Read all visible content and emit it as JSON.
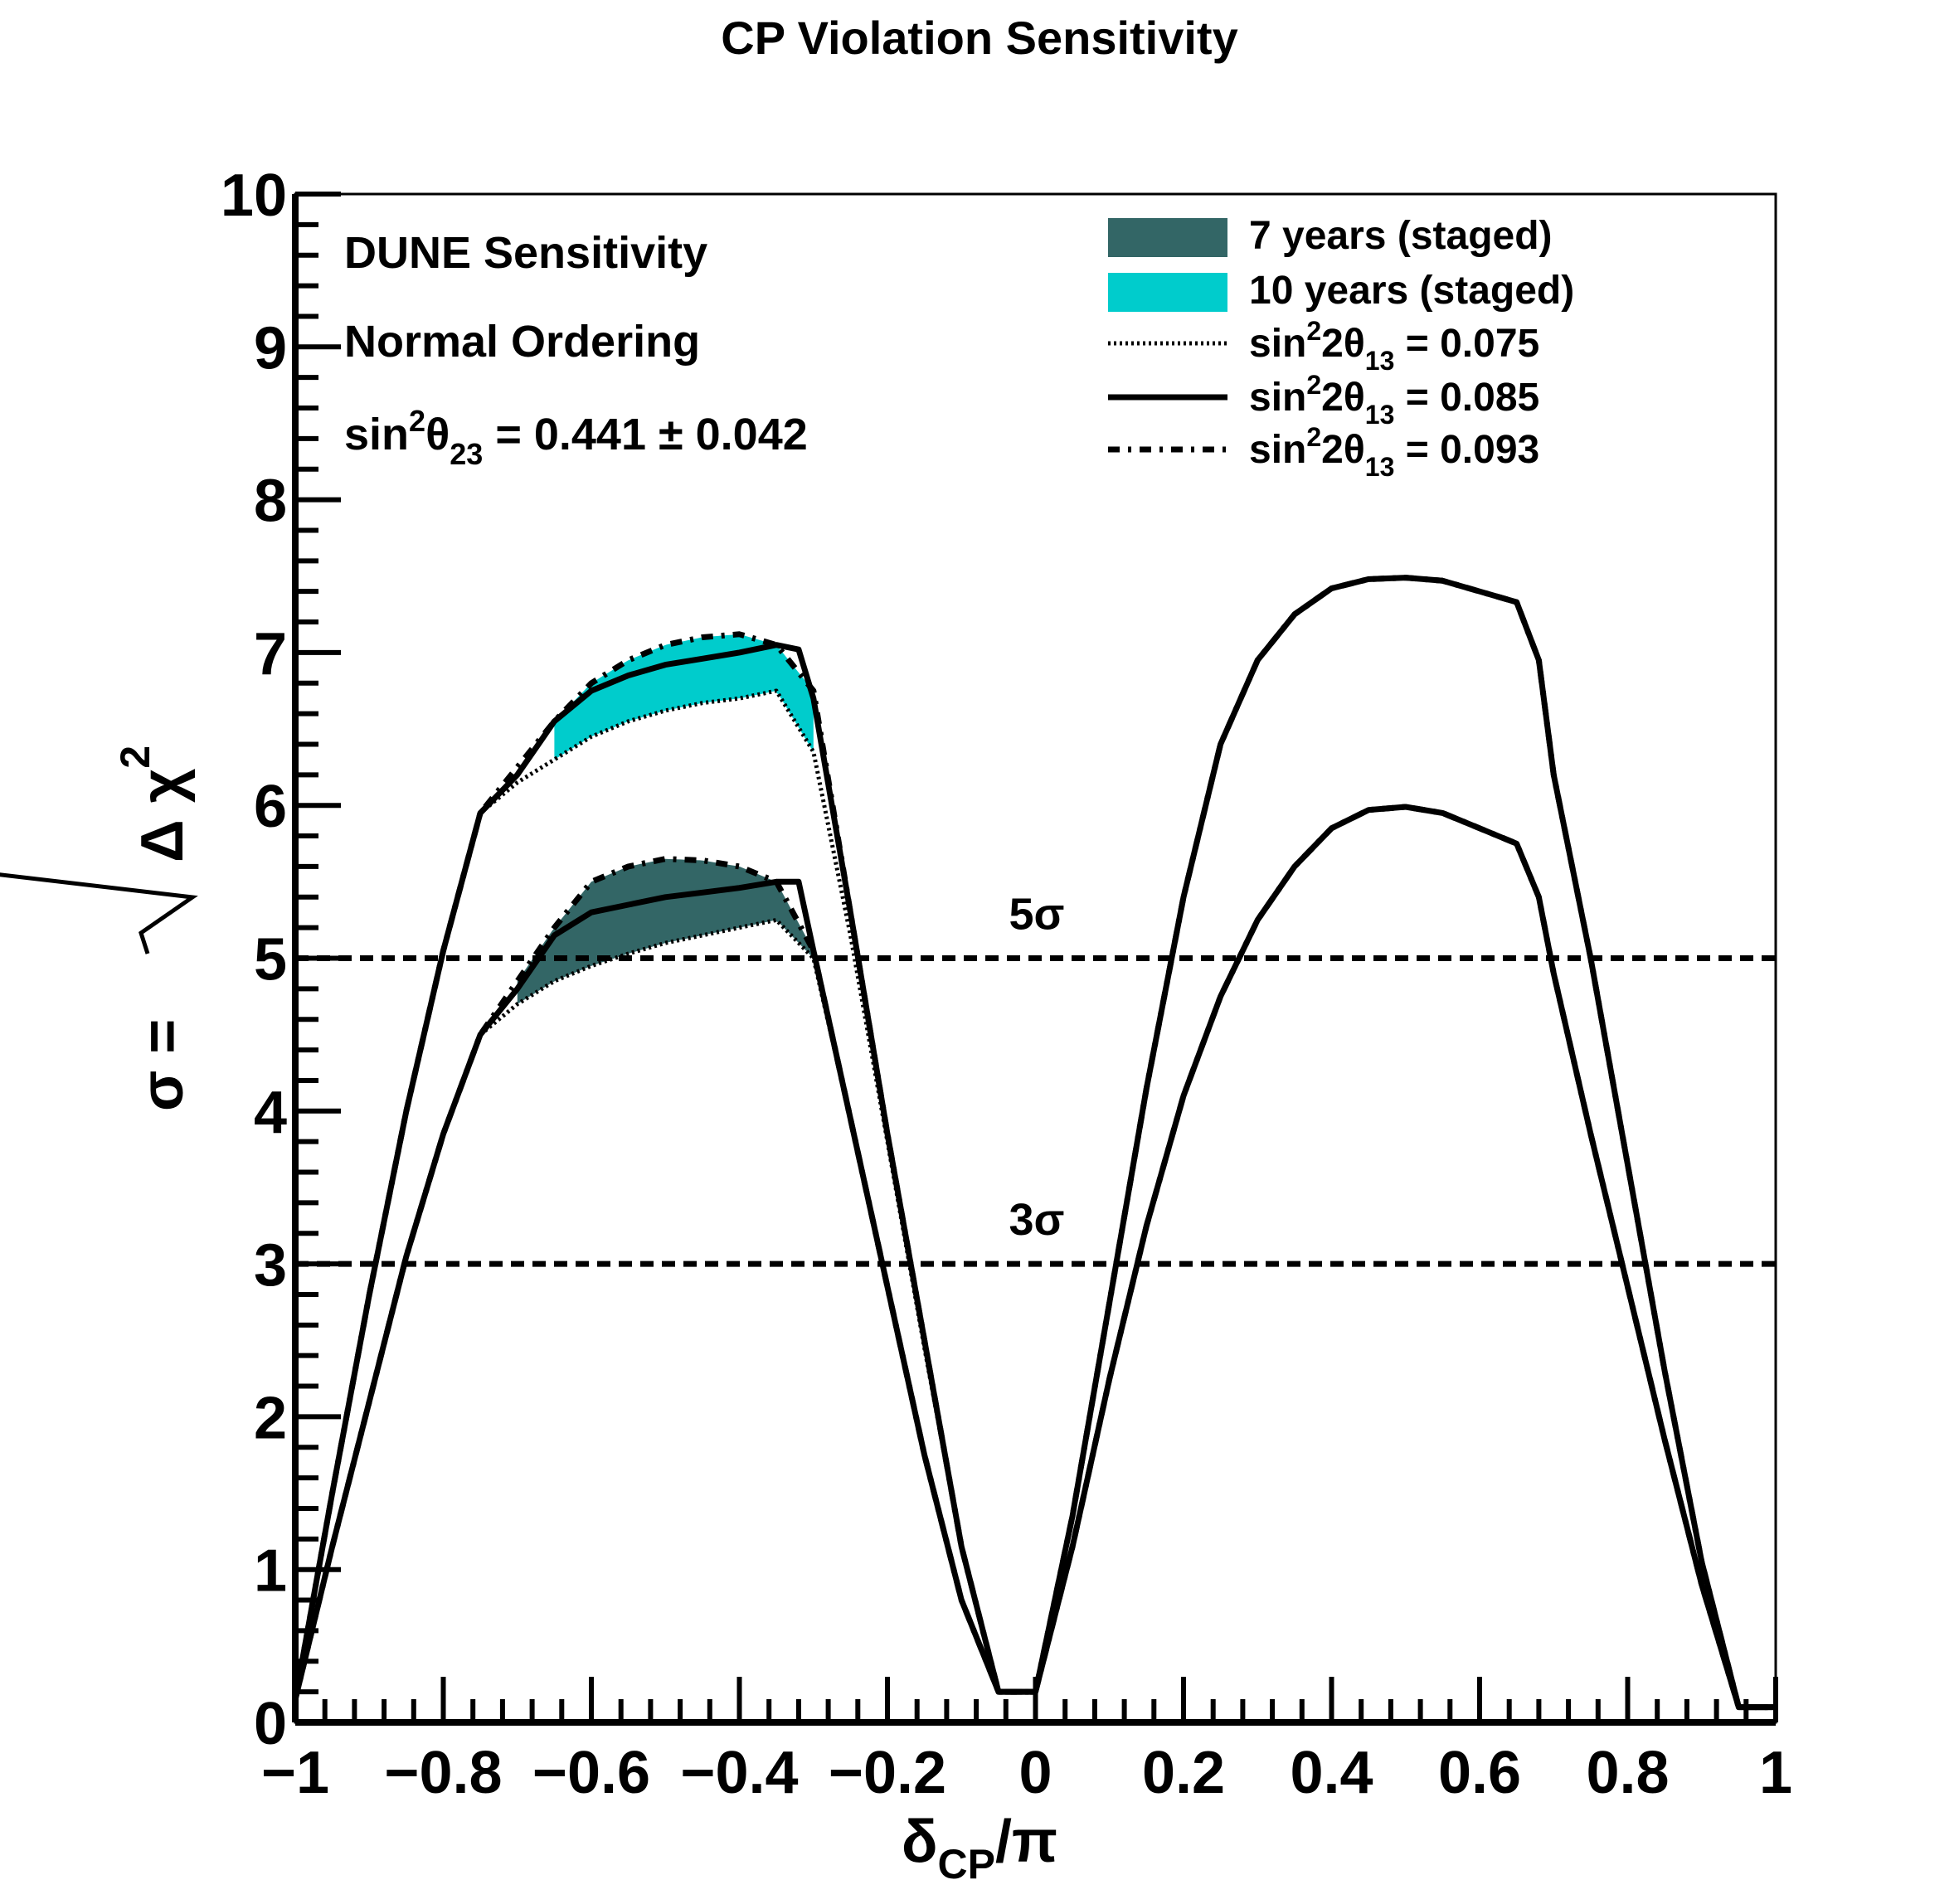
{
  "chart_data": {
    "type": "line",
    "title": "CP Violation Sensitivity",
    "xlabel": {
      "main": "δ",
      "sub": "CP",
      "tail": "/π"
    },
    "ylabel": {
      "prefix": "σ = ",
      "radicand": "Δ χ",
      "sup": "2"
    },
    "xlim": [
      -1,
      1
    ],
    "ylim": [
      0,
      10
    ],
    "xticks": [
      -1,
      -0.8,
      -0.6,
      -0.4,
      -0.2,
      0,
      0.2,
      0.4,
      0.6,
      0.8,
      1
    ],
    "xtick_labels": [
      "−1",
      "−0.8",
      "−0.6",
      "−0.4",
      "−0.2",
      "0",
      "0.2",
      "0.4",
      "0.6",
      "0.8",
      "1"
    ],
    "yticks": [
      0,
      1,
      2,
      3,
      4,
      5,
      6,
      7,
      8,
      9,
      10
    ],
    "ytick_labels": [
      "0",
      "1",
      "2",
      "3",
      "4",
      "5",
      "6",
      "7",
      "8",
      "9",
      "10"
    ],
    "annotations": {
      "line1": "DUNE Sensitivity",
      "line2": "Normal Ordering",
      "line3": {
        "pre": "sin",
        "sup": "2",
        "mid": "θ",
        "sub": "23",
        "post": " = 0.441 ± 0.042"
      }
    },
    "reference_lines": [
      {
        "y": 5,
        "label": "5σ"
      },
      {
        "y": 3,
        "label": "3σ"
      }
    ],
    "legend": {
      "position": "top-right",
      "entries": [
        {
          "kind": "fill",
          "label": "7 years (staged)",
          "color": "#336666"
        },
        {
          "kind": "fill",
          "label": "10 years (staged)",
          "color": "#00cccc"
        },
        {
          "kind": "dotted",
          "pre": "sin",
          "sup": "2",
          "mid": "2θ",
          "sub": "13",
          "post": " = 0.075"
        },
        {
          "kind": "solid",
          "pre": "sin",
          "sup": "2",
          "mid": "2θ",
          "sub": "13",
          "post": " = 0.085"
        },
        {
          "kind": "dashdot",
          "pre": "sin",
          "sup": "2",
          "mid": "2θ",
          "sub": "13",
          "post": " = 0.093"
        }
      ]
    },
    "series": [
      {
        "group": "7 years (staged)",
        "style": "dotted",
        "color": "#000000",
        "x": [
          -1,
          -0.95,
          -0.9,
          -0.85,
          -0.8,
          -0.75,
          -0.7,
          -0.65,
          -0.6,
          -0.55,
          -0.5,
          -0.45,
          -0.4,
          -0.35,
          -0.3,
          -0.25,
          -0.2,
          -0.15,
          -0.1,
          -0.05,
          0,
          0.05,
          0.1,
          0.15,
          0.2,
          0.25,
          0.3,
          0.35,
          0.4,
          0.45,
          0.5,
          0.55,
          0.6,
          0.65,
          0.68,
          0.7,
          0.75,
          0.8,
          0.85,
          0.9,
          0.95,
          1
        ],
        "y": [
          0.15,
          1.15,
          2.1,
          3.05,
          3.85,
          4.5,
          4.7,
          4.85,
          4.95,
          5.03,
          5.1,
          5.15,
          5.2,
          5.25,
          5.0,
          3.95,
          2.85,
          1.75,
          0.8,
          0.2,
          0.2,
          1.15,
          2.25,
          3.25,
          4.1,
          4.75,
          5.25,
          5.6,
          5.85,
          5.97,
          5.99,
          5.95,
          5.85,
          5.75,
          5.4,
          4.9,
          3.85,
          2.85,
          1.85,
          0.9,
          0.1,
          0.1
        ]
      },
      {
        "group": "7 years (staged)",
        "style": "solid",
        "color": "#000000",
        "x": [
          -1,
          -0.95,
          -0.9,
          -0.85,
          -0.8,
          -0.75,
          -0.7,
          -0.65,
          -0.6,
          -0.55,
          -0.5,
          -0.45,
          -0.4,
          -0.35,
          -0.32,
          -0.3,
          -0.25,
          -0.2,
          -0.15,
          -0.1,
          -0.05,
          0,
          0.05,
          0.1,
          0.15,
          0.2,
          0.25,
          0.3,
          0.35,
          0.4,
          0.45,
          0.5,
          0.55,
          0.6,
          0.65,
          0.68,
          0.7,
          0.75,
          0.8,
          0.85,
          0.9,
          0.95,
          1
        ],
        "y": [
          0.15,
          1.15,
          2.1,
          3.05,
          3.85,
          4.5,
          4.8,
          5.15,
          5.3,
          5.35,
          5.4,
          5.43,
          5.46,
          5.5,
          5.5,
          5.05,
          3.95,
          2.85,
          1.75,
          0.8,
          0.2,
          0.2,
          1.15,
          2.25,
          3.25,
          4.1,
          4.75,
          5.25,
          5.6,
          5.85,
          5.97,
          5.99,
          5.95,
          5.85,
          5.75,
          5.4,
          4.9,
          3.85,
          2.85,
          1.85,
          0.9,
          0.1,
          0.1
        ]
      },
      {
        "group": "7 years (staged)",
        "style": "dashdot",
        "color": "#000000",
        "x": [
          -1,
          -0.95,
          -0.9,
          -0.85,
          -0.8,
          -0.75,
          -0.7,
          -0.65,
          -0.6,
          -0.55,
          -0.5,
          -0.45,
          -0.4,
          -0.35,
          -0.3,
          -0.25,
          -0.2,
          -0.15,
          -0.1,
          -0.05,
          0,
          0.05,
          0.1,
          0.15,
          0.2,
          0.25,
          0.3,
          0.35,
          0.4,
          0.45,
          0.5,
          0.55,
          0.6,
          0.65,
          0.68,
          0.7,
          0.75,
          0.8,
          0.85,
          0.9,
          0.95,
          1
        ],
        "y": [
          0.15,
          1.15,
          2.1,
          3.05,
          3.85,
          4.5,
          4.85,
          5.2,
          5.5,
          5.6,
          5.65,
          5.64,
          5.6,
          5.5,
          5.05,
          3.95,
          2.85,
          1.75,
          0.8,
          0.2,
          0.2,
          1.15,
          2.25,
          3.25,
          4.1,
          4.75,
          5.25,
          5.6,
          5.85,
          5.97,
          5.99,
          5.95,
          5.85,
          5.75,
          5.4,
          4.9,
          3.85,
          2.85,
          1.85,
          0.9,
          0.1,
          0.1
        ]
      },
      {
        "group": "10 years (staged)",
        "style": "dotted",
        "color": "#000000",
        "x": [
          -1,
          -0.95,
          -0.9,
          -0.85,
          -0.8,
          -0.75,
          -0.7,
          -0.65,
          -0.6,
          -0.55,
          -0.5,
          -0.45,
          -0.4,
          -0.35,
          -0.3,
          -0.25,
          -0.2,
          -0.15,
          -0.1,
          -0.05,
          0,
          0.05,
          0.1,
          0.15,
          0.2,
          0.25,
          0.3,
          0.35,
          0.4,
          0.45,
          0.5,
          0.55,
          0.6,
          0.65,
          0.68,
          0.7,
          0.75,
          0.8,
          0.85,
          0.9,
          0.95,
          1
        ],
        "y": [
          0.15,
          1.5,
          2.8,
          4.0,
          5.05,
          5.95,
          6.15,
          6.3,
          6.45,
          6.55,
          6.62,
          6.67,
          6.7,
          6.75,
          6.35,
          5.15,
          3.8,
          2.45,
          1.15,
          0.2,
          0.2,
          1.35,
          2.75,
          4.15,
          5.4,
          6.4,
          6.95,
          7.25,
          7.42,
          7.48,
          7.49,
          7.47,
          7.4,
          7.33,
          6.95,
          6.2,
          5.0,
          3.65,
          2.3,
          1.05,
          0.1,
          0.1
        ]
      },
      {
        "group": "10 years (staged)",
        "style": "solid",
        "color": "#000000",
        "x": [
          -1,
          -0.95,
          -0.9,
          -0.85,
          -0.8,
          -0.75,
          -0.7,
          -0.65,
          -0.6,
          -0.55,
          -0.5,
          -0.45,
          -0.4,
          -0.35,
          -0.32,
          -0.3,
          -0.25,
          -0.2,
          -0.15,
          -0.1,
          -0.05,
          0,
          0.05,
          0.1,
          0.15,
          0.2,
          0.25,
          0.3,
          0.35,
          0.4,
          0.45,
          0.5,
          0.55,
          0.6,
          0.65,
          0.68,
          0.7,
          0.75,
          0.8,
          0.85,
          0.9,
          0.95,
          1
        ],
        "y": [
          0.15,
          1.5,
          2.8,
          4.0,
          5.05,
          5.95,
          6.2,
          6.55,
          6.75,
          6.85,
          6.92,
          6.96,
          7.0,
          7.05,
          7.02,
          6.7,
          5.3,
          3.85,
          2.5,
          1.15,
          0.2,
          0.2,
          1.35,
          2.75,
          4.15,
          5.4,
          6.4,
          6.95,
          7.25,
          7.42,
          7.48,
          7.49,
          7.47,
          7.4,
          7.33,
          6.95,
          6.2,
          5.0,
          3.65,
          2.3,
          1.05,
          0.1,
          0.1
        ]
      },
      {
        "group": "10 years (staged)",
        "style": "dashdot",
        "color": "#000000",
        "x": [
          -1,
          -0.95,
          -0.9,
          -0.85,
          -0.8,
          -0.75,
          -0.7,
          -0.65,
          -0.6,
          -0.55,
          -0.5,
          -0.45,
          -0.4,
          -0.35,
          -0.3,
          -0.25,
          -0.2,
          -0.15,
          -0.1,
          -0.05,
          0,
          0.05,
          0.1,
          0.15,
          0.2,
          0.25,
          0.3,
          0.35,
          0.4,
          0.45,
          0.5,
          0.55,
          0.6,
          0.65,
          0.68,
          0.7,
          0.75,
          0.8,
          0.85,
          0.9,
          0.95,
          1
        ],
        "y": [
          0.15,
          1.5,
          2.8,
          4.0,
          5.05,
          5.95,
          6.25,
          6.55,
          6.8,
          6.95,
          7.05,
          7.1,
          7.12,
          7.05,
          6.75,
          5.3,
          3.85,
          2.5,
          1.15,
          0.2,
          0.2,
          1.35,
          2.75,
          4.15,
          5.4,
          6.4,
          6.95,
          7.25,
          7.42,
          7.48,
          7.49,
          7.47,
          7.4,
          7.33,
          6.95,
          6.2,
          5.0,
          3.65,
          2.3,
          1.05,
          0.1,
          0.1
        ]
      }
    ],
    "bands": [
      {
        "group": "7 years (staged)",
        "color": "#336666",
        "x_from": -0.7,
        "x_to": -0.3
      },
      {
        "group": "10 years (staged)",
        "color": "#00cccc",
        "x_from": -0.65,
        "x_to": -0.3
      }
    ]
  }
}
